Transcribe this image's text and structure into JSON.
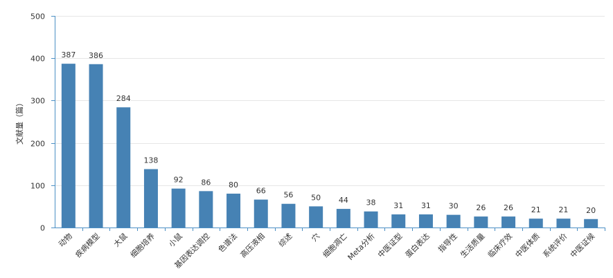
{
  "chart_data": {
    "type": "bar",
    "ylabel": "文献量（篇）",
    "ylim": [
      0,
      500
    ],
    "yticks": [
      0,
      100,
      200,
      300,
      400,
      500
    ],
    "grid": true,
    "bar_color": "#4682b4",
    "categories": [
      "动物",
      "疾病模型",
      "大鼠",
      "细胞培养",
      "小鼠",
      "基因表达调控",
      "色谱法",
      "高压液相",
      "综述",
      "穴",
      "细胞凋亡",
      "Meta分析",
      "中医证型",
      "蛋白表达",
      "指导性",
      "生活质量",
      "临床疗效",
      "中医体质",
      "系统评价",
      "中医证候"
    ],
    "values": [
      387,
      386,
      284,
      138,
      92,
      86,
      80,
      66,
      56,
      50,
      44,
      38,
      31,
      31,
      30,
      26,
      26,
      21,
      21,
      20
    ]
  }
}
